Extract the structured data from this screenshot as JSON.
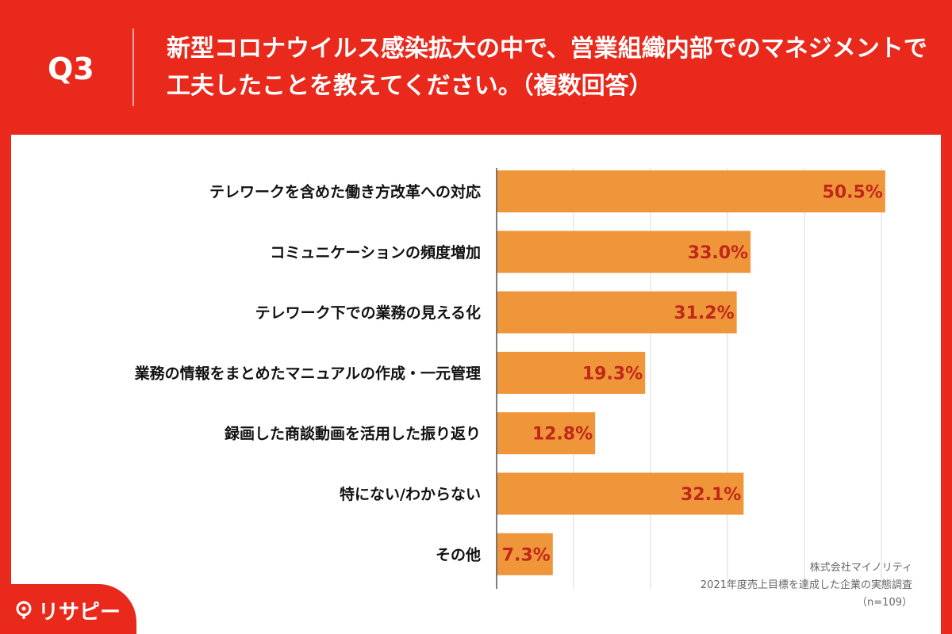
{
  "header": {
    "question": "Q3",
    "title": "新型コロナウイルス感染拡大の中で、営業組織内部でのマネジメントで工夫したことを教えてください。（複数回答）"
  },
  "chart_data": {
    "type": "bar",
    "orientation": "horizontal",
    "categories": [
      "テレワークを含めた働き方改革への対応",
      "コミュニケーションの頻度増加",
      "テレワーク下での業務の見える化",
      "業務の情報をまとめたマニュアルの作成・一元管理",
      "録画した商談動画を活用した振り返り",
      "特にない/わからない",
      "その他"
    ],
    "values": [
      50.5,
      33.0,
      31.2,
      19.3,
      12.8,
      32.1,
      7.3
    ],
    "value_labels": [
      "50.5%",
      "33.0%",
      "31.2%",
      "19.3%",
      "12.8%",
      "32.1%",
      "7.3%"
    ],
    "xlim": [
      0,
      60
    ],
    "grid": true,
    "bar_color": "#f0963a",
    "label_color": "#c0281c"
  },
  "source": {
    "company": "株式会社マイノリティ",
    "survey": "2021年度売上目標を達成した企業の実態調査",
    "sample": "（n=109）"
  },
  "logo": {
    "text": "リサピー"
  },
  "colors": {
    "background": "#e8291b",
    "panel": "#ffffff"
  }
}
